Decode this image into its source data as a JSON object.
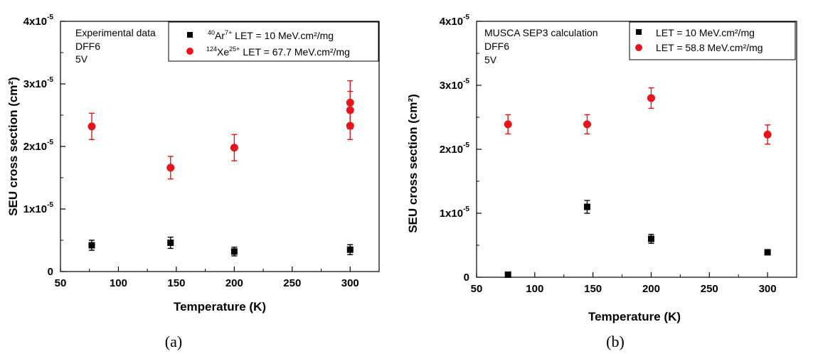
{
  "chart_data": [
    {
      "type": "scatter",
      "panel_label": "(a)",
      "xlabel": "Temperature (K)",
      "ylabel": "SEU cross section (cm²)",
      "xlim": [
        50,
        325
      ],
      "ylim": [
        0,
        4e-05
      ],
      "xticks": [
        "50",
        "100",
        "150",
        "200",
        "250",
        "300"
      ],
      "yticks": [
        {
          "mant": "0",
          "exp": ""
        },
        {
          "mant": "1x10",
          "exp": "-5"
        },
        {
          "mant": "2x10",
          "exp": "-5"
        },
        {
          "mant": "3x10",
          "exp": "-5"
        },
        {
          "mant": "4x10",
          "exp": "-5"
        }
      ],
      "annotation": [
        "Experimental data",
        "DFF6",
        "5V"
      ],
      "legend": [
        {
          "pre": "",
          "sup1": "40",
          "mid": "Ar",
          "sup2": "7+",
          "post": " LET = 10 MeV.cm²/mg"
        },
        {
          "pre": "",
          "sup1": "124",
          "mid": "Xe",
          "sup2": "25+",
          "post": " LET = 67.7 MeV.cm²/mg"
        }
      ],
      "legend_position": "top-right",
      "series": [
        {
          "marker": "square",
          "color": "#000000",
          "points": [
            {
              "x": 77,
              "y": 4.2e-06,
              "err": 8e-07
            },
            {
              "x": 145,
              "y": 4.6e-06,
              "err": 9e-07
            },
            {
              "x": 200,
              "y": 3.2e-06,
              "err": 7e-07
            },
            {
              "x": 300,
              "y": 3.5e-06,
              "err": 8e-07
            }
          ]
        },
        {
          "marker": "circle",
          "color": "#e8141b",
          "points": [
            {
              "x": 77,
              "y": 2.32e-05,
              "err": 2.1e-06
            },
            {
              "x": 145,
              "y": 1.66e-05,
              "err": 1.8e-06
            },
            {
              "x": 200,
              "y": 1.98e-05,
              "err": 2.1e-06
            },
            {
              "x": 300,
              "y": 2.7e-05,
              "err": 3.5e-06
            },
            {
              "x": 300,
              "y": 2.58e-05,
              "err": 3e-06
            },
            {
              "x": 300,
              "y": 2.33e-05,
              "err": 2.2e-06
            }
          ]
        }
      ]
    },
    {
      "type": "scatter",
      "panel_label": "(b)",
      "xlabel": "Temperature (K)",
      "ylabel": "SEU cross section (cm²)",
      "xlim": [
        50,
        325
      ],
      "ylim": [
        0,
        4e-05
      ],
      "xticks": [
        "50",
        "100",
        "150",
        "200",
        "250",
        "300"
      ],
      "yticks": [
        {
          "mant": "0",
          "exp": ""
        },
        {
          "mant": "1x10",
          "exp": "-5"
        },
        {
          "mant": "2x10",
          "exp": "-5"
        },
        {
          "mant": "3x10",
          "exp": "-5"
        },
        {
          "mant": "4x10",
          "exp": "-5"
        }
      ],
      "annotation": [
        "MUSCA SEP3 calculation",
        "DFF6",
        "5V"
      ],
      "legend": [
        {
          "pre": "LET = 10 MeV.cm²/mg",
          "sup1": "",
          "mid": "",
          "sup2": "",
          "post": ""
        },
        {
          "pre": "LET = 58.8 MeV.cm²/mg",
          "sup1": "",
          "mid": "",
          "sup2": "",
          "post": ""
        }
      ],
      "legend_position": "top-right",
      "series": [
        {
          "marker": "square",
          "color": "#000000",
          "points": [
            {
              "x": 77,
              "y": 4e-07,
              "err": 2e-07
            },
            {
              "x": 145,
              "y": 1.1e-05,
              "err": 1e-06
            },
            {
              "x": 200,
              "y": 6e-06,
              "err": 7e-07
            },
            {
              "x": 300,
              "y": 3.9e-06,
              "err": 3e-07
            }
          ]
        },
        {
          "marker": "circle",
          "color": "#e8141b",
          "points": [
            {
              "x": 77,
              "y": 2.39e-05,
              "err": 1.5e-06
            },
            {
              "x": 145,
              "y": 2.39e-05,
              "err": 1.5e-06
            },
            {
              "x": 200,
              "y": 2.8e-05,
              "err": 1.6e-06
            },
            {
              "x": 300,
              "y": 2.23e-05,
              "err": 1.5e-06
            }
          ]
        }
      ]
    }
  ]
}
